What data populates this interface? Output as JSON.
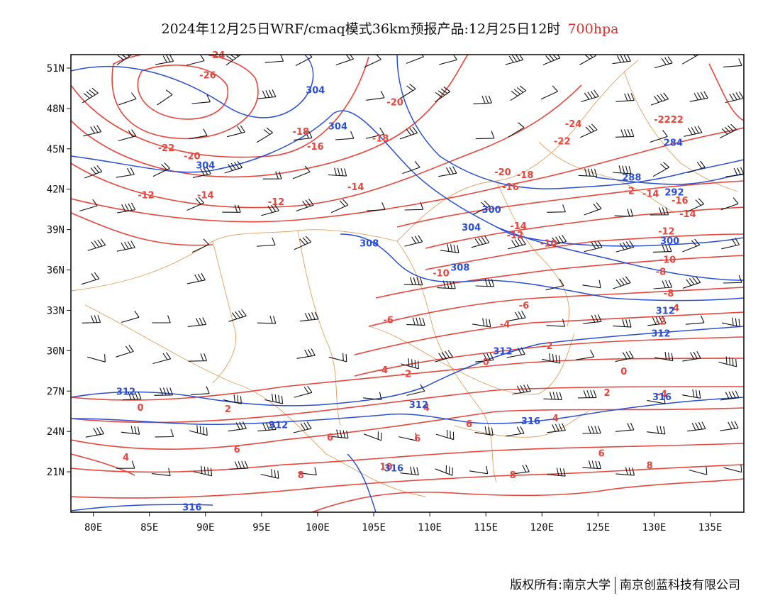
{
  "title": {
    "main": "2024年12月25日WRF/cmaq模式36km预报产品:12月25日12时",
    "level": "700hpa"
  },
  "axes": {
    "lat_ticks": [
      "51N",
      "48N",
      "45N",
      "42N",
      "39N",
      "36N",
      "33N",
      "30N",
      "27N",
      "24N",
      "21N"
    ],
    "lon_ticks": [
      "80E",
      "85E",
      "90E",
      "95E",
      "100E",
      "105E",
      "110E",
      "115E",
      "120E",
      "125E",
      "130E",
      "135E"
    ]
  },
  "colors": {
    "temperature": "#e8453c",
    "geopotential": "#2a4fd6",
    "border": "#e0a060",
    "wind": "#111111"
  },
  "chart_data": {
    "type": "contour-map",
    "lon_range": [
      78,
      138
    ],
    "lat_range": [
      18,
      52
    ],
    "temperature_labels": [
      {
        "text": "-24",
        "lon": 91.0,
        "lat": 52.0
      },
      {
        "text": "-26",
        "lon": 90.2,
        "lat": 50.5
      },
      {
        "text": "-20",
        "lon": 106.9,
        "lat": 48.5
      },
      {
        "text": "-18",
        "lon": 98.5,
        "lat": 46.3
      },
      {
        "text": "-18",
        "lon": 105.6,
        "lat": 45.8
      },
      {
        "text": "-16",
        "lon": 99.8,
        "lat": 45.2
      },
      {
        "text": "-22",
        "lon": 86.5,
        "lat": 45.1
      },
      {
        "text": "-20",
        "lon": 88.8,
        "lat": 44.5
      },
      {
        "text": "-24",
        "lon": 122.8,
        "lat": 46.9
      },
      {
        "text": "-22",
        "lon": 121.8,
        "lat": 45.6
      },
      {
        "text": "-2222",
        "lon": 131.3,
        "lat": 47.2
      },
      {
        "text": "-20",
        "lon": 116.5,
        "lat": 43.3
      },
      {
        "text": "-18",
        "lon": 118.5,
        "lat": 43.1
      },
      {
        "text": "-16",
        "lon": 117.2,
        "lat": 42.2
      },
      {
        "text": "-14",
        "lon": 103.4,
        "lat": 42.2
      },
      {
        "text": "-14",
        "lon": 90.0,
        "lat": 41.6
      },
      {
        "text": "-12",
        "lon": 84.7,
        "lat": 41.6
      },
      {
        "text": "-12",
        "lon": 96.3,
        "lat": 41.1
      },
      {
        "text": "-14",
        "lon": 117.9,
        "lat": 39.3
      },
      {
        "text": "-12",
        "lon": 117.6,
        "lat": 38.6
      },
      {
        "text": "-10",
        "lon": 120.6,
        "lat": 38.0
      },
      {
        "text": "-2",
        "lon": 127.8,
        "lat": 41.9
      },
      {
        "text": "-14",
        "lon": 129.7,
        "lat": 41.7
      },
      {
        "text": "-16",
        "lon": 132.3,
        "lat": 41.2
      },
      {
        "text": "-14",
        "lon": 133.0,
        "lat": 40.2
      },
      {
        "text": "-12",
        "lon": 131.1,
        "lat": 38.9
      },
      {
        "text": "-10",
        "lon": 131.2,
        "lat": 36.8
      },
      {
        "text": "-8",
        "lon": 130.6,
        "lat": 35.9
      },
      {
        "text": "-10",
        "lon": 111.0,
        "lat": 35.8
      },
      {
        "text": "-8",
        "lon": 131.3,
        "lat": 34.3
      },
      {
        "text": "-6",
        "lon": 118.4,
        "lat": 33.4
      },
      {
        "text": "-4",
        "lon": 131.8,
        "lat": 33.2
      },
      {
        "text": "-6",
        "lon": 106.3,
        "lat": 32.3
      },
      {
        "text": "-4",
        "lon": 116.7,
        "lat": 32.0
      },
      {
        "text": "-2",
        "lon": 130.6,
        "lat": 32.2
      },
      {
        "text": "-2",
        "lon": 120.5,
        "lat": 30.4
      },
      {
        "text": "0",
        "lon": 115.0,
        "lat": 29.2
      },
      {
        "text": "-4",
        "lon": 105.8,
        "lat": 28.6
      },
      {
        "text": "-2",
        "lon": 107.9,
        "lat": 28.3
      },
      {
        "text": "0",
        "lon": 127.3,
        "lat": 28.5
      },
      {
        "text": "2",
        "lon": 125.8,
        "lat": 26.9
      },
      {
        "text": "-4",
        "lon": 130.7,
        "lat": 26.8
      },
      {
        "text": "0",
        "lon": 84.2,
        "lat": 25.8
      },
      {
        "text": "2",
        "lon": 92.0,
        "lat": 25.7
      },
      {
        "text": "4",
        "lon": 109.7,
        "lat": 25.8
      },
      {
        "text": "4",
        "lon": 121.2,
        "lat": 25.0
      },
      {
        "text": "6",
        "lon": 108.9,
        "lat": 23.5
      },
      {
        "text": "6",
        "lon": 113.5,
        "lat": 24.6
      },
      {
        "text": "6",
        "lon": 101.1,
        "lat": 23.6
      },
      {
        "text": "6",
        "lon": 92.8,
        "lat": 22.7
      },
      {
        "text": "4",
        "lon": 82.9,
        "lat": 22.1
      },
      {
        "text": "6",
        "lon": 125.3,
        "lat": 22.4
      },
      {
        "text": "8",
        "lon": 129.6,
        "lat": 21.5
      },
      {
        "text": "8",
        "lon": 98.5,
        "lat": 20.8
      },
      {
        "text": "8",
        "lon": 117.4,
        "lat": 20.8
      },
      {
        "text": "10",
        "lon": 106.1,
        "lat": 21.4
      }
    ],
    "geopotential_labels": [
      {
        "text": "304",
        "lon": 99.8,
        "lat": 49.4
      },
      {
        "text": "304",
        "lon": 101.8,
        "lat": 46.7
      },
      {
        "text": "304",
        "lon": 90.0,
        "lat": 43.8
      },
      {
        "text": "284",
        "lon": 131.7,
        "lat": 45.5
      },
      {
        "text": "288",
        "lon": 128.0,
        "lat": 42.9
      },
      {
        "text": "292",
        "lon": 131.8,
        "lat": 41.8
      },
      {
        "text": "300",
        "lon": 115.5,
        "lat": 40.5
      },
      {
        "text": "304",
        "lon": 113.7,
        "lat": 39.2
      },
      {
        "text": "300",
        "lon": 131.4,
        "lat": 38.2
      },
      {
        "text": "308",
        "lon": 104.6,
        "lat": 38.0
      },
      {
        "text": "308",
        "lon": 112.7,
        "lat": 36.2
      },
      {
        "text": "312",
        "lon": 131.0,
        "lat": 33.0
      },
      {
        "text": "312",
        "lon": 130.6,
        "lat": 31.3
      },
      {
        "text": "312",
        "lon": 116.5,
        "lat": 30.0
      },
      {
        "text": "312",
        "lon": 82.9,
        "lat": 27.0
      },
      {
        "text": "312",
        "lon": 109.0,
        "lat": 26.0
      },
      {
        "text": "316",
        "lon": 130.7,
        "lat": 26.6
      },
      {
        "text": "316",
        "lon": 119.0,
        "lat": 24.8
      },
      {
        "text": "316",
        "lon": 106.8,
        "lat": 21.3
      },
      {
        "text": "312",
        "lon": 96.5,
        "lat": 24.5
      },
      {
        "text": "316",
        "lon": 88.8,
        "lat": 18.4
      }
    ]
  },
  "footer": {
    "left": "版权所有:南京大学",
    "right": "南京创蓝科技有限公司"
  }
}
